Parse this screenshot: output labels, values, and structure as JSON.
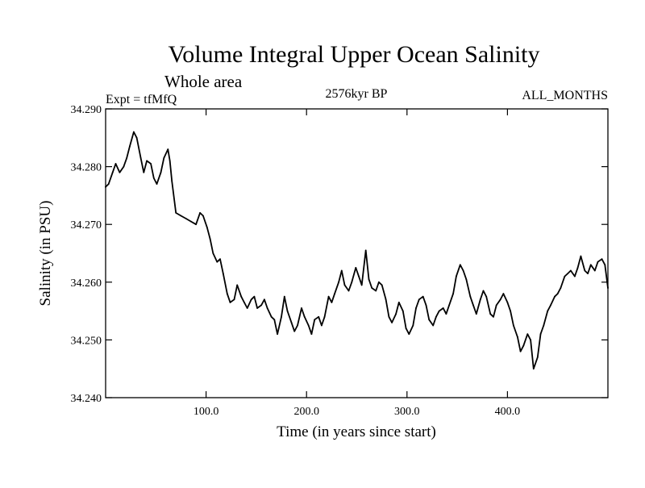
{
  "chart_data": {
    "type": "line",
    "title": "Volume Integral Upper Ocean Salinity",
    "subtitle": "Whole area",
    "left_label": "Expt = tfMfQ",
    "center_label": "2576kyr BP",
    "right_label": "ALL_MONTHS",
    "xlabel": "Time (in years since start)",
    "ylabel": "Salinity (in PSU)",
    "xlim": [
      0,
      500
    ],
    "ylim": [
      34.24,
      34.29
    ],
    "x_ticks": [
      100,
      200,
      300,
      400
    ],
    "x_tick_labels": [
      "100.0",
      "200.0",
      "300.0",
      "400.0"
    ],
    "y_ticks": [
      34.24,
      34.25,
      34.26,
      34.27,
      34.28,
      34.29
    ],
    "y_tick_labels": [
      "34.240",
      "34.250",
      "34.260",
      "34.270",
      "34.280",
      "34.290"
    ],
    "grid": false,
    "series": [
      {
        "name": "Salinity",
        "color": "#000000",
        "x": [
          0,
          3,
          7,
          10,
          14,
          18,
          21,
          24,
          28,
          31,
          35,
          38,
          41,
          45,
          48,
          51,
          55,
          58,
          62,
          64,
          66,
          70,
          75,
          80,
          85,
          90,
          94,
          97,
          101,
          104,
          107,
          111,
          114,
          117,
          121,
          124,
          128,
          131,
          135,
          138,
          141,
          145,
          148,
          151,
          155,
          158,
          161,
          165,
          168,
          171,
          175,
          178,
          181,
          185,
          188,
          191,
          195,
          198,
          202,
          205,
          208,
          212,
          215,
          218,
          222,
          225,
          228,
          232,
          235,
          238,
          242,
          245,
          249,
          252,
          255,
          259,
          262,
          265,
          269,
          272,
          275,
          279,
          282,
          285,
          289,
          292,
          296,
          299,
          302,
          306,
          309,
          312,
          316,
          319,
          322,
          326,
          329,
          332,
          336,
          339,
          342,
          346,
          349,
          353,
          356,
          359,
          363,
          366,
          369,
          373,
          376,
          379,
          383,
          386,
          389,
          393,
          396,
          400,
          403,
          406,
          410,
          413,
          416,
          420,
          423,
          426,
          430,
          433,
          436,
          440,
          443,
          447,
          450,
          453,
          457,
          460,
          463,
          467,
          470,
          473,
          477,
          480,
          483,
          487,
          490,
          494,
          497,
          500
        ],
        "values": [
          34.2765,
          34.277,
          34.279,
          34.2805,
          34.279,
          34.28,
          34.2815,
          34.2835,
          34.286,
          34.285,
          34.2815,
          34.279,
          34.281,
          34.2805,
          34.278,
          34.277,
          34.279,
          34.2815,
          34.283,
          34.281,
          34.2775,
          34.272,
          34.2715,
          34.271,
          34.2705,
          34.27,
          34.272,
          34.2715,
          34.2695,
          34.2675,
          34.265,
          34.2635,
          34.264,
          34.2615,
          34.258,
          34.2565,
          34.257,
          34.2595,
          34.2575,
          34.2565,
          34.2555,
          34.257,
          34.2575,
          34.2555,
          34.256,
          34.257,
          34.2555,
          34.254,
          34.2535,
          34.251,
          34.254,
          34.2575,
          34.255,
          34.253,
          34.2515,
          34.2525,
          34.2555,
          34.254,
          34.2525,
          34.251,
          34.2535,
          34.254,
          34.2525,
          34.254,
          34.2575,
          34.2565,
          34.258,
          34.26,
          34.262,
          34.2595,
          34.2585,
          34.26,
          34.2625,
          34.261,
          34.2595,
          34.2655,
          34.2605,
          34.259,
          34.2585,
          34.26,
          34.2595,
          34.257,
          34.254,
          34.253,
          34.2545,
          34.2565,
          34.255,
          34.252,
          34.251,
          34.2525,
          34.2555,
          34.257,
          34.2575,
          34.256,
          34.2535,
          34.2525,
          34.254,
          34.255,
          34.2555,
          34.2545,
          34.256,
          34.258,
          34.261,
          34.263,
          34.262,
          34.2605,
          34.2575,
          34.256,
          34.2545,
          34.257,
          34.2585,
          34.2575,
          34.2545,
          34.254,
          34.256,
          34.257,
          34.258,
          34.2565,
          34.255,
          34.2525,
          34.2505,
          34.248,
          34.249,
          34.251,
          34.25,
          34.245,
          34.247,
          34.251,
          34.2525,
          34.255,
          34.256,
          34.2575,
          34.258,
          34.259,
          34.261,
          34.2615,
          34.262,
          34.261,
          34.2625,
          34.2645,
          34.262,
          34.2615,
          34.263,
          34.262,
          34.2635,
          34.264,
          34.263,
          34.259
        ]
      }
    ]
  }
}
